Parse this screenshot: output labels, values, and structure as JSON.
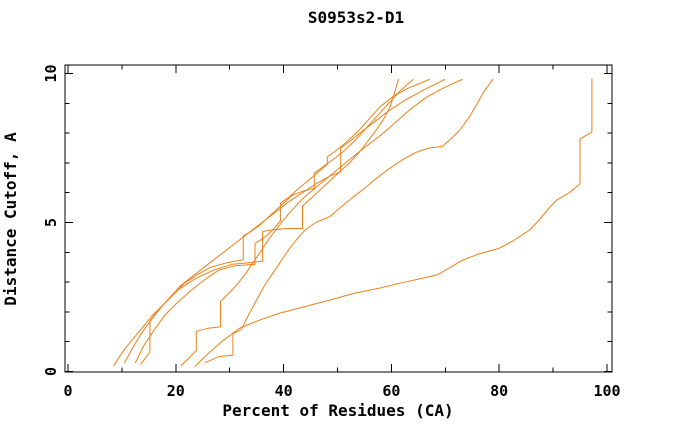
{
  "chart_data": {
    "type": "line",
    "title": "S0953s2-D1",
    "xlabel": "Percent of Residues (CA)",
    "ylabel": "Distance Cutoff, A",
    "xlim": [
      0,
      100
    ],
    "ylim": [
      0,
      10.3
    ],
    "x_major_ticks": [
      0,
      20,
      40,
      60,
      80,
      100
    ],
    "x_minor_ticks": [
      10,
      30,
      50,
      70,
      90
    ],
    "y_major_ticks": [
      0,
      5,
      10
    ],
    "y_minor_ticks": [
      1,
      2,
      3,
      4,
      6,
      7,
      8,
      9
    ],
    "grid": false,
    "legend": "none",
    "line_color": "#EE8019",
    "axis_color": "#000000",
    "series": [
      {
        "name": "curve-1",
        "points": [
          [
            8.5,
            0.2
          ],
          [
            10.5,
            0.75
          ],
          [
            13,
            1.3
          ],
          [
            15.5,
            1.85
          ],
          [
            18,
            2.3
          ],
          [
            20.5,
            2.75
          ],
          [
            23.5,
            3.1
          ],
          [
            27,
            3.4
          ],
          [
            30.5,
            3.6
          ],
          [
            33.5,
            3.65
          ],
          [
            36.1,
            3.7
          ],
          [
            36.1,
            4.7
          ],
          [
            38,
            4.75
          ],
          [
            40.5,
            4.8
          ],
          [
            43.5,
            4.8
          ],
          [
            43.5,
            5.55
          ],
          [
            45,
            5.8
          ],
          [
            46.5,
            6.05
          ],
          [
            48,
            6.3
          ],
          [
            49.5,
            6.55
          ],
          [
            51,
            6.8
          ],
          [
            52.5,
            7.05
          ],
          [
            54,
            7.35
          ],
          [
            55.5,
            7.7
          ],
          [
            57,
            8.05
          ],
          [
            58.5,
            8.45
          ],
          [
            59.8,
            8.9
          ],
          [
            60.5,
            9.3
          ],
          [
            61.3,
            9.8
          ]
        ]
      },
      {
        "name": "curve-2",
        "points": [
          [
            10.5,
            0.3
          ],
          [
            12,
            0.8
          ],
          [
            13.5,
            1.25
          ],
          [
            15.5,
            1.75
          ],
          [
            17.5,
            2.2
          ],
          [
            19.5,
            2.6
          ],
          [
            21.5,
            2.95
          ],
          [
            24,
            3.25
          ],
          [
            26.5,
            3.5
          ],
          [
            29.5,
            3.65
          ],
          [
            32.5,
            3.75
          ],
          [
            32.5,
            4.55
          ],
          [
            34,
            4.7
          ],
          [
            35.5,
            4.9
          ],
          [
            37,
            5.15
          ],
          [
            38.5,
            5.4
          ],
          [
            40,
            5.65
          ],
          [
            41.5,
            5.9
          ],
          [
            43.5,
            6.05
          ],
          [
            45.7,
            6.15
          ],
          [
            45.7,
            6.65
          ],
          [
            47.5,
            6.9
          ],
          [
            49.5,
            7.15
          ],
          [
            51.5,
            7.45
          ],
          [
            53.5,
            7.8
          ],
          [
            55.5,
            8.2
          ],
          [
            57.5,
            8.6
          ],
          [
            59.5,
            9.0
          ],
          [
            61.5,
            9.4
          ],
          [
            64,
            9.8
          ]
        ]
      },
      {
        "name": "curve-3",
        "points": [
          [
            12.5,
            0.3
          ],
          [
            14,
            0.85
          ],
          [
            16,
            1.4
          ],
          [
            18,
            1.9
          ],
          [
            20.5,
            2.35
          ],
          [
            23,
            2.75
          ],
          [
            25.5,
            3.1
          ],
          [
            28,
            3.4
          ],
          [
            31,
            3.55
          ],
          [
            34.7,
            3.6
          ],
          [
            34.7,
            4.3
          ],
          [
            36.5,
            4.5
          ],
          [
            38,
            4.75
          ],
          [
            39.4,
            5.05
          ],
          [
            39.4,
            5.65
          ],
          [
            41,
            5.85
          ],
          [
            42.5,
            6.1
          ],
          [
            44.5,
            6.4
          ],
          [
            46.5,
            6.7
          ],
          [
            48.1,
            6.95
          ],
          [
            48.1,
            7.2
          ],
          [
            50,
            7.45
          ],
          [
            52,
            7.75
          ],
          [
            54,
            8.1
          ],
          [
            56,
            8.5
          ],
          [
            58,
            8.9
          ],
          [
            60.5,
            9.25
          ],
          [
            63,
            9.5
          ],
          [
            67,
            9.8
          ]
        ]
      },
      {
        "name": "curve-4",
        "points": [
          [
            13.5,
            0.25
          ],
          [
            15.2,
            0.65
          ],
          [
            15.2,
            1.7
          ],
          [
            17,
            2.1
          ],
          [
            19,
            2.5
          ],
          [
            21,
            2.9
          ],
          [
            23.5,
            3.25
          ],
          [
            26,
            3.6
          ],
          [
            28.5,
            3.95
          ],
          [
            31,
            4.3
          ],
          [
            33.5,
            4.65
          ],
          [
            36,
            5.0
          ],
          [
            38.5,
            5.35
          ],
          [
            41,
            5.7
          ],
          [
            43.5,
            6.0
          ],
          [
            46,
            6.3
          ],
          [
            48.5,
            6.55
          ],
          [
            50.6,
            6.7
          ],
          [
            50.6,
            7.5
          ],
          [
            52.5,
            7.75
          ],
          [
            54.5,
            8.05
          ],
          [
            57,
            8.4
          ],
          [
            59.5,
            8.75
          ],
          [
            62.5,
            9.1
          ],
          [
            66,
            9.45
          ],
          [
            69.9,
            9.8
          ]
        ]
      },
      {
        "name": "curve-5",
        "points": [
          [
            21,
            0.2
          ],
          [
            23.8,
            0.7
          ],
          [
            23.8,
            1.35
          ],
          [
            26,
            1.45
          ],
          [
            28.3,
            1.5
          ],
          [
            28.3,
            2.35
          ],
          [
            30,
            2.65
          ],
          [
            31.5,
            2.95
          ],
          [
            33,
            3.3
          ],
          [
            34.5,
            3.7
          ],
          [
            36,
            4.1
          ],
          [
            37.5,
            4.5
          ],
          [
            39,
            4.85
          ],
          [
            40.5,
            5.2
          ],
          [
            42,
            5.5
          ],
          [
            43.5,
            5.8
          ],
          [
            45.5,
            6.1
          ],
          [
            47.5,
            6.4
          ],
          [
            49.5,
            6.7
          ],
          [
            51.5,
            7.0
          ],
          [
            53.5,
            7.3
          ],
          [
            56,
            7.65
          ],
          [
            58.5,
            8.0
          ],
          [
            61,
            8.4
          ],
          [
            63.5,
            8.8
          ],
          [
            66.5,
            9.2
          ],
          [
            69.5,
            9.5
          ],
          [
            73.1,
            9.8
          ]
        ]
      },
      {
        "name": "curve-6",
        "points": [
          [
            25.5,
            0.3
          ],
          [
            28,
            0.5
          ],
          [
            30.6,
            0.55
          ],
          [
            30.6,
            1.27
          ],
          [
            32.1,
            1.4
          ],
          [
            33.5,
            1.9
          ],
          [
            35,
            2.4
          ],
          [
            36.5,
            2.9
          ],
          [
            38,
            3.3
          ],
          [
            39.5,
            3.7
          ],
          [
            41,
            4.1
          ],
          [
            42.5,
            4.45
          ],
          [
            44,
            4.75
          ],
          [
            46,
            5.0
          ],
          [
            48.6,
            5.2
          ],
          [
            50.5,
            5.5
          ],
          [
            52.5,
            5.8
          ],
          [
            54.7,
            6.1
          ],
          [
            57,
            6.45
          ],
          [
            59.5,
            6.8
          ],
          [
            62,
            7.1
          ],
          [
            64.5,
            7.35
          ],
          [
            67,
            7.5
          ],
          [
            69.4,
            7.55
          ],
          [
            71,
            7.8
          ],
          [
            72.7,
            8.1
          ],
          [
            74.3,
            8.5
          ],
          [
            75.8,
            8.95
          ],
          [
            77,
            9.35
          ],
          [
            78.8,
            9.8
          ]
        ]
      },
      {
        "name": "curve-7",
        "points": [
          [
            23.6,
            0.18
          ],
          [
            26,
            0.6
          ],
          [
            28.5,
            1.0
          ],
          [
            31.9,
            1.46
          ],
          [
            35.5,
            1.72
          ],
          [
            39.3,
            1.96
          ],
          [
            44,
            2.18
          ],
          [
            48.6,
            2.4
          ],
          [
            53,
            2.62
          ],
          [
            57.8,
            2.8
          ],
          [
            62,
            2.98
          ],
          [
            65,
            3.1
          ],
          [
            68.5,
            3.24
          ],
          [
            71,
            3.5
          ],
          [
            73,
            3.72
          ],
          [
            76,
            3.93
          ],
          [
            80.1,
            4.14
          ],
          [
            82.5,
            4.38
          ],
          [
            85.7,
            4.75
          ],
          [
            87.5,
            5.1
          ],
          [
            89.4,
            5.52
          ],
          [
            90.7,
            5.76
          ],
          [
            93,
            6.0
          ],
          [
            95,
            6.29
          ],
          [
            95,
            7.8
          ],
          [
            97.2,
            8.04
          ],
          [
            97.2,
            9.82
          ]
        ]
      }
    ]
  }
}
